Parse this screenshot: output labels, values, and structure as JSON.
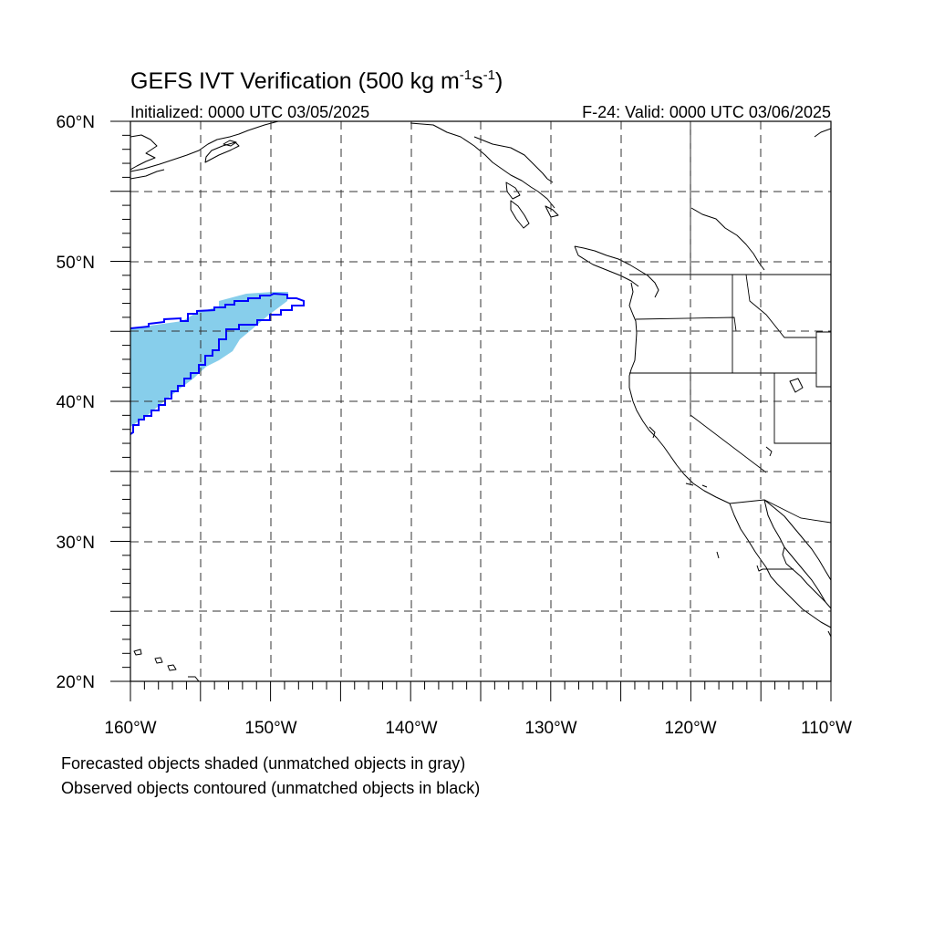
{
  "header": {
    "title_main": "GEFS IVT Verification (500 kg m",
    "title_exp1": "-1",
    "title_mid": "s",
    "title_exp2": "-1",
    "title_end": ")",
    "init_label": "Initialized: 0000 UTC 03/05/2025",
    "valid_label": "F-24: Valid: 0000 UTC 03/06/2025"
  },
  "axes": {
    "lat_labels": [
      "60°N",
      "50°N",
      "40°N",
      "30°N",
      "20°N"
    ],
    "lon_labels": [
      "160°W",
      "150°W",
      "140°W",
      "130°W",
      "120°W",
      "110°W"
    ]
  },
  "map": {
    "lon_range": [
      -160,
      -110
    ],
    "lat_range": [
      20,
      60
    ],
    "forecast_color": "#87ceeb",
    "observed_color": "#0000ff",
    "forecast_object": {
      "matched": true,
      "label": "forecast IVT object"
    },
    "observed_object": {
      "matched": true,
      "label": "observed IVT object"
    }
  },
  "footer": {
    "line1": "Forecasted objects shaded (unmatched objects in gray)",
    "line2": "Observed objects contoured (unmatched objects in black)"
  }
}
